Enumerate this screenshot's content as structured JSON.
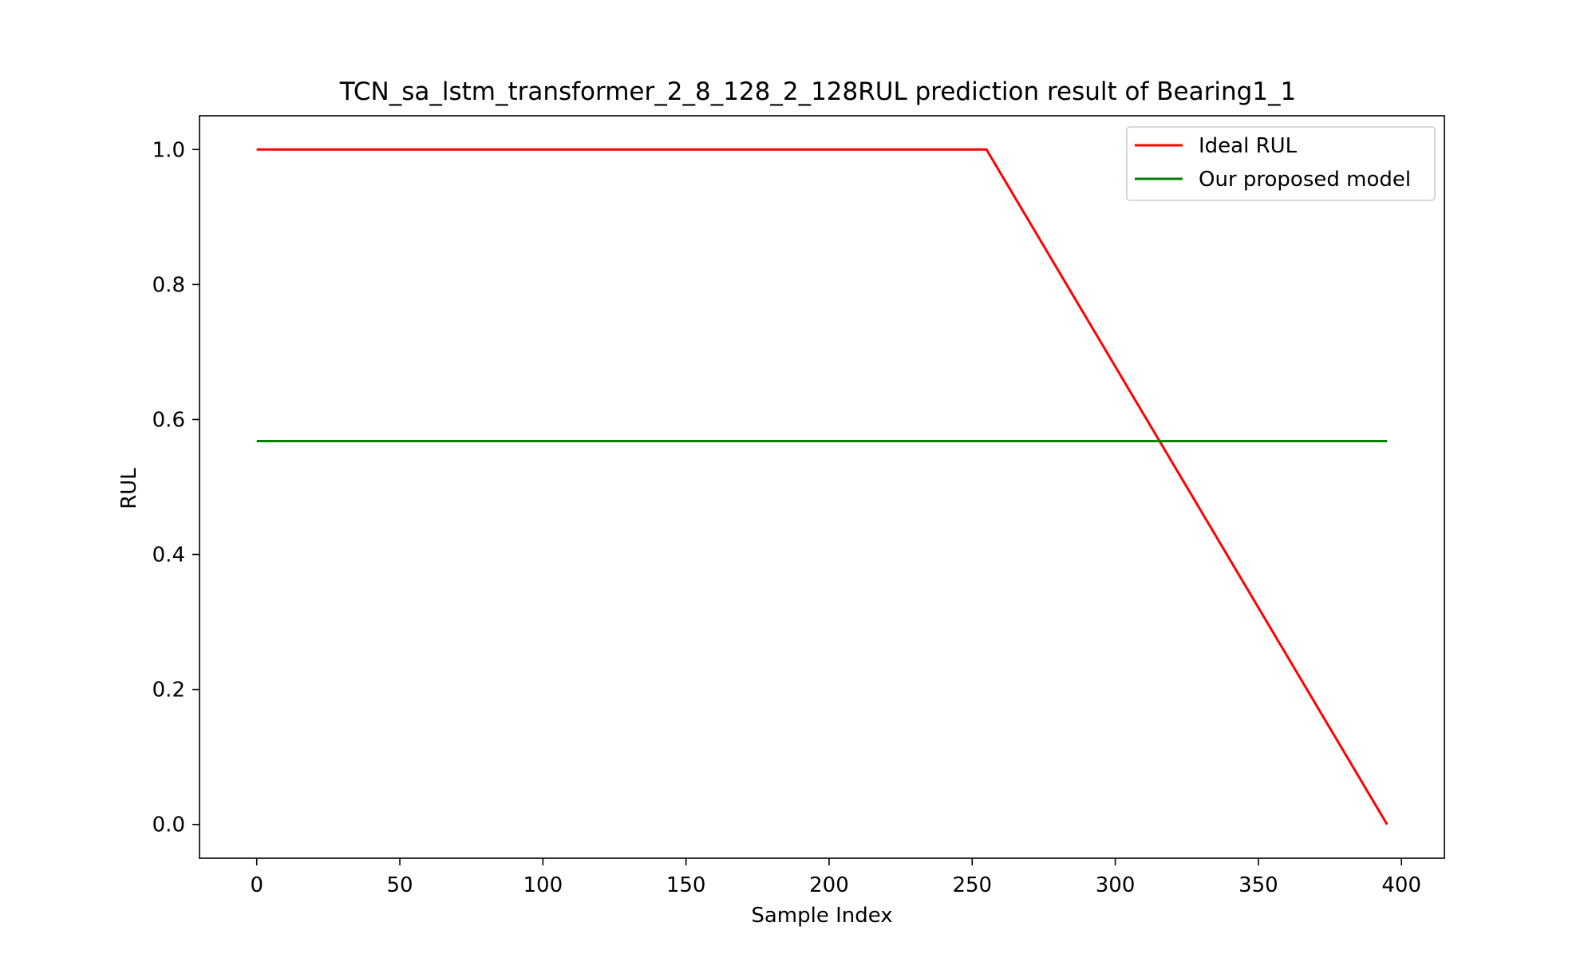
{
  "chart_data": {
    "type": "line",
    "title": "TCN_sa_lstm_transformer_2_8_128_2_128RUL prediction result of Bearing1_1",
    "xlabel": "Sample Index",
    "ylabel": "RUL",
    "xlim": [
      -20,
      415
    ],
    "ylim": [
      -0.05,
      1.05
    ],
    "xticks": [
      0,
      50,
      100,
      150,
      200,
      250,
      300,
      350,
      400
    ],
    "xtick_labels": [
      "0",
      "50",
      "100",
      "150",
      "200",
      "250",
      "300",
      "350",
      "400"
    ],
    "yticks": [
      0.0,
      0.2,
      0.4,
      0.6,
      0.8,
      1.0
    ],
    "ytick_labels": [
      "0.0",
      "0.2",
      "0.4",
      "0.6",
      "0.8",
      "1.0"
    ],
    "grid": false,
    "legend_position": "top-right",
    "series": [
      {
        "name": "Ideal RUL",
        "color": "#ff0000",
        "x": [
          0,
          255,
          395
        ],
        "y": [
          1.0,
          1.0,
          0.0
        ]
      },
      {
        "name": "Our proposed model",
        "color": "#008000",
        "x": [
          0,
          395
        ],
        "y": [
          0.568,
          0.568
        ]
      }
    ]
  }
}
